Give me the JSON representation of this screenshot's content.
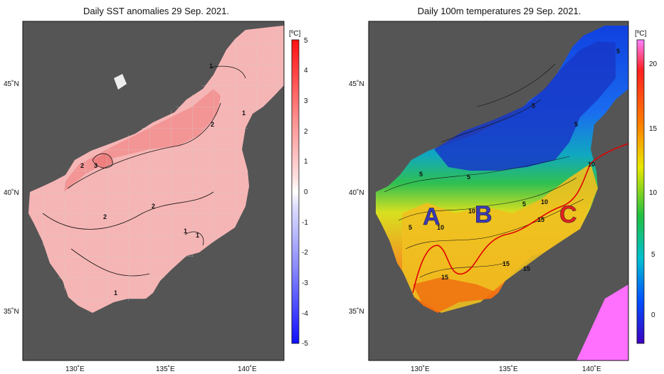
{
  "left_panel": {
    "title": "Daily SST anomalies 29 Sep. 2021.",
    "unit": "[ºC]",
    "colorbar_ticks": [
      "5",
      "4",
      "3",
      "2",
      "1",
      "0",
      "-1",
      "-2",
      "-3",
      "-4",
      "-5"
    ],
    "contour_labels": [
      "1",
      "1",
      "2",
      "2",
      "3",
      "2",
      "2",
      "1",
      "1",
      "1"
    ]
  },
  "right_panel": {
    "title": "Daily 100m temperatures 29 Sep. 2021.",
    "unit": "[ºC]",
    "colorbar_ticks": [
      "20",
      "15",
      "10",
      "5",
      "0"
    ],
    "contour_labels": [
      "5",
      "5",
      "5",
      "5",
      "5",
      "5",
      "10",
      "10",
      "10",
      "15",
      "15",
      "15",
      "15",
      "5",
      "10"
    ],
    "eddy_labels": [
      {
        "text": "A",
        "color": "#3a3ab8"
      },
      {
        "text": "B",
        "color": "#3a3ab8"
      },
      {
        "text": "C",
        "color": "#e02020"
      }
    ]
  },
  "axes": {
    "lat_labels": [
      "45˚N",
      "40˚N",
      "35˚N"
    ],
    "lon_labels": [
      "130˚E",
      "135˚E",
      "140˚E"
    ]
  },
  "colors": {
    "land": "#555555",
    "anomaly_colormap": [
      "#1a1aff",
      "#ffffff",
      "#ff1a1a"
    ],
    "temp_colormap": [
      "#3d00c0",
      "#0050ff",
      "#00c0d0",
      "#20c040",
      "#e8e800",
      "#ff8000",
      "#ff2020",
      "#ff80ff"
    ]
  }
}
